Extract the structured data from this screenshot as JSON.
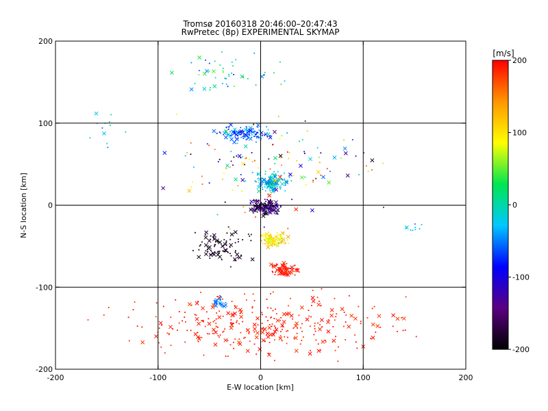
{
  "chart_data": [
    {
      "type": "scatter",
      "title": "Tromsø 20160318 20:46:00–20:47:43",
      "subtitle": "RwPretec (8p) EXPERIMENTAL SKYMAP",
      "xlabel": "E-W location [km]",
      "ylabel": "N-S location [km]",
      "xlim": [
        -200,
        200
      ],
      "ylim": [
        -200,
        200
      ],
      "xticks": [
        "-200",
        "-100",
        "0",
        "100",
        "200"
      ],
      "yticks": [
        "-200",
        "-100",
        "0",
        "100",
        "200"
      ],
      "grid": true,
      "marker_types": [
        "dot",
        "x"
      ],
      "colorscale": "rainbow (black-violet-blue-cyan-green-yellow-red)",
      "clusters": [
        {
          "x_range": [
            -15,
            25
          ],
          "y_range": [
            -15,
            10
          ],
          "velocity_range_ms": [
            -200,
            -110
          ],
          "approx_points": 160
        },
        {
          "x_range": [
            -10,
            30
          ],
          "y_range": [
            10,
            45
          ],
          "velocity_range_ms": [
            -60,
            20
          ],
          "approx_points": 140
        },
        {
          "x_range": [
            -50,
            20
          ],
          "y_range": [
            75,
            100
          ],
          "velocity_range_ms": [
            -100,
            -20
          ],
          "approx_points": 120
        },
        {
          "x_range": [
            -5,
            30
          ],
          "y_range": [
            -55,
            -30
          ],
          "velocity_range_ms": [
            60,
            140
          ],
          "approx_points": 110
        },
        {
          "x_range": [
            -80,
            0
          ],
          "y_range": [
            -80,
            -20
          ],
          "velocity_range_ms": [
            -200,
            -175
          ],
          "approx_points": 90
        },
        {
          "x_range": [
            5,
            40
          ],
          "y_range": [
            -90,
            -65
          ],
          "velocity_range_ms": [
            180,
            200
          ],
          "approx_points": 80
        },
        {
          "x_range": [
            -190,
            190
          ],
          "y_range": [
            -195,
            -95
          ],
          "velocity_range_ms": [
            175,
            200
          ],
          "approx_points": 320
        },
        {
          "x_range": [
            -50,
            -30
          ],
          "y_range": [
            -130,
            -105
          ],
          "velocity_range_ms": [
            -60,
            -40
          ],
          "approx_points": 25
        },
        {
          "x_range": [
            -120,
            150
          ],
          "y_range": [
            -40,
            130
          ],
          "velocity_range_ms": [
            -200,
            200
          ],
          "approx_points": 140
        },
        {
          "x_range": [
            -100,
            40
          ],
          "y_range": [
            130,
            195
          ],
          "velocity_range_ms": [
            -80,
            60
          ],
          "approx_points": 50
        },
        {
          "x_range": [
            -180,
            -110
          ],
          "y_range": [
            60,
            125
          ],
          "velocity_range_ms": [
            -60,
            20
          ],
          "approx_points": 12
        },
        {
          "x_range": [
            130,
            160
          ],
          "y_range": [
            -35,
            -20
          ],
          "velocity_range_ms": [
            -60,
            0
          ],
          "approx_points": 10
        }
      ]
    },
    {
      "type": "heatmap",
      "title": "[m/s]",
      "colorbar_min": -200,
      "colorbar_max": 200,
      "colorbar_ticks": [
        "200",
        "100",
        "0",
        "-100",
        "-200"
      ],
      "colors": [
        "#000000",
        "#5a0082",
        "#0000ff",
        "#00c8ff",
        "#00e650",
        "#ffff00",
        "#ff9600",
        "#ff0000"
      ]
    }
  ]
}
